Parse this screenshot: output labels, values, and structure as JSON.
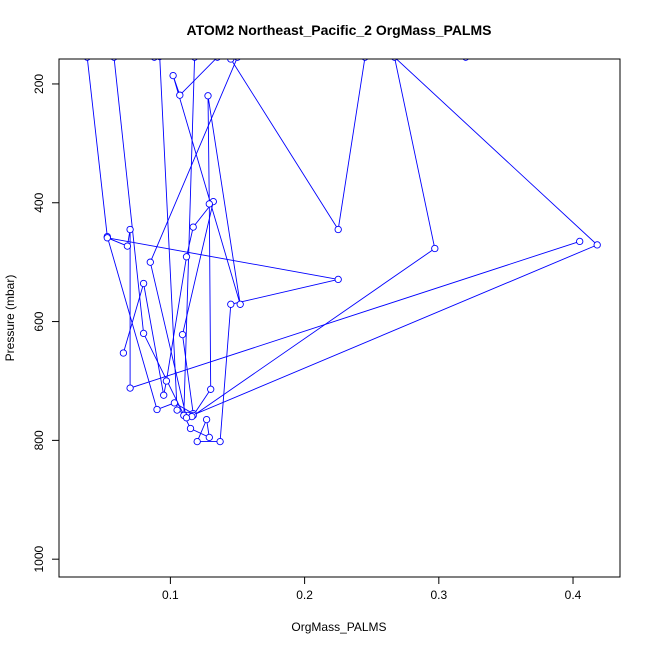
{
  "chart_data": {
    "type": "line",
    "title": "ATOM2 Northeast_Pacific_2 OrgMass_PALMS",
    "xlabel": "OrgMass_PALMS",
    "ylabel": "Pressure (mbar)",
    "xlim": [
      0.017,
      0.435
    ],
    "ylim": [
      1030,
      158
    ],
    "y_reversed": true,
    "x_ticks": [
      0.1,
      0.2,
      0.3,
      0.4
    ],
    "x_tick_labels": [
      "0.1",
      "0.2",
      "0.3",
      "0.4"
    ],
    "y_ticks": [
      200,
      400,
      600,
      800,
      1000
    ],
    "y_tick_labels": [
      "200",
      "400",
      "600",
      "800",
      "1000"
    ],
    "grid": false,
    "legend": "none",
    "line_color": "#0000ff",
    "marker": "open-circle",
    "series": [
      {
        "x": [
          0.038,
          0.053,
          0.09,
          0.103,
          0.117,
          0.109,
          0.132,
          0.117,
          0.112,
          0.097,
          0.095,
          0.08,
          0.065
        ],
        "y": [
          155,
          457,
          748,
          737,
          755,
          622,
          398,
          441,
          491,
          700,
          724,
          536,
          653
        ]
      },
      {
        "x": [
          0.058,
          0.08,
          0.115,
          0.129,
          0.127,
          0.12,
          0.137,
          0.145,
          0.225,
          0.053,
          0.068,
          0.07,
          0.07,
          0.405
        ],
        "y": [
          155,
          620,
          780,
          795,
          765,
          802,
          802,
          571,
          529,
          459,
          473,
          445,
          712,
          465
        ]
      },
      {
        "x": [
          0.088,
          0.092,
          0.105,
          0.113,
          0.117,
          0.13,
          0.129,
          0.128,
          0.152,
          0.102,
          0.107,
          0.135,
          0.145,
          0.225,
          0.245
        ],
        "y": [
          155,
          154,
          749,
          758,
          758,
          714,
          402,
          220,
          571,
          186,
          219,
          155,
          158,
          445,
          155
        ]
      },
      {
        "x": [
          0.118,
          0.11,
          0.116,
          0.297,
          0.267,
          0.418,
          0.112,
          0.085,
          0.15,
          0.32
        ],
        "y": [
          155,
          758,
          760,
          477,
          155,
          471,
          762,
          500,
          155,
          155
        ]
      }
    ]
  }
}
